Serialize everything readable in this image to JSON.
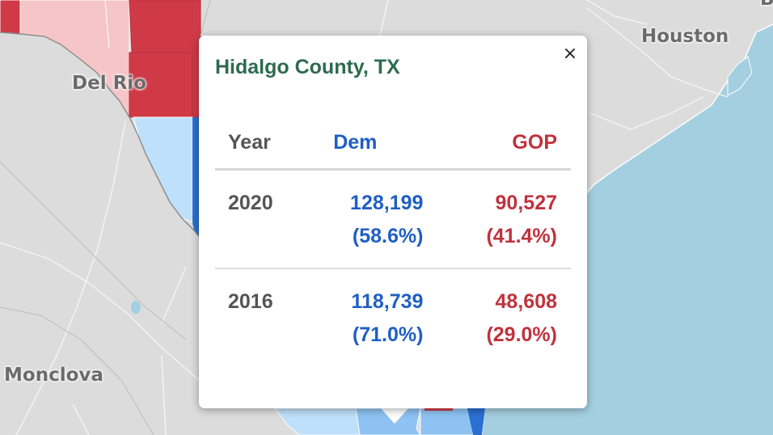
{
  "map": {
    "labels": {
      "del_rio": "Del Rio",
      "houston": "Houston",
      "monclova": "Monclova",
      "edge": "B"
    },
    "colors": {
      "land": "#dcdcdc",
      "water": "#a3cfe0",
      "gop_strong": "#d03a47",
      "gop_light": "#f6c5c8",
      "dem_light": "#bfe0fa",
      "dem_mid": "#8dc2f2",
      "dem_strong": "#2a6fd1"
    }
  },
  "popup": {
    "title": "Hidalgo County, TX",
    "close_icon": "×",
    "headers": {
      "year": "Year",
      "dem": "Dem",
      "gop": "GOP"
    },
    "rows": [
      {
        "year": "2020",
        "dem_votes": "128,199",
        "dem_pct": "(58.6%)",
        "gop_votes": "90,527",
        "gop_pct": "(41.4%)"
      },
      {
        "year": "2016",
        "dem_votes": "118,739",
        "dem_pct": "(71.0%)",
        "gop_votes": "48,608",
        "gop_pct": "(29.0%)"
      }
    ],
    "colors": {
      "title": "#2e6b4f",
      "dem": "#1f5fc4",
      "gop": "#c0323d",
      "year": "#555555"
    }
  }
}
